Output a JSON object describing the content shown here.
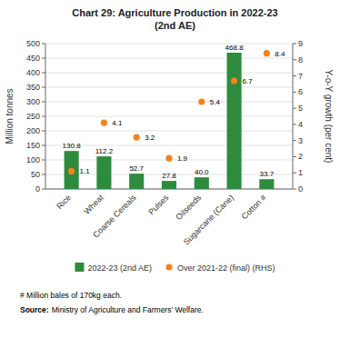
{
  "chart_data": {
    "type": "bar",
    "title": "Chart 29: Agriculture Production in 2022-23",
    "subtitle": "(2nd AE)",
    "categories": [
      "Rice",
      "Wheat",
      "Coarse Cereals",
      "Pulses",
      "Oilseeds",
      "Sugarcane (Cane)",
      "Cotton #"
    ],
    "series": [
      {
        "name": "2022-23 (2nd AE)",
        "type": "bar",
        "color": "#2e8b3e",
        "values": [
          130.8,
          112.2,
          52.7,
          27.8,
          40.0,
          468.8,
          33.7
        ],
        "value_labels": [
          "130.8",
          "112.2",
          "52.7",
          "27.8",
          "40.0",
          "468.8",
          "33.7"
        ]
      },
      {
        "name": "Over 2021-22 (final) (RHS)",
        "type": "scatter",
        "axis": "y2",
        "marker": "circle",
        "color": "#f5821f",
        "values": [
          1.1,
          4.1,
          3.2,
          1.9,
          5.4,
          6.7,
          8.4
        ]
      }
    ],
    "ylabel": "Million tonnes",
    "y2label": "Y-o-Y growth (per cent)",
    "ylim": [
      0,
      500
    ],
    "yticks": [
      0,
      50,
      100,
      150,
      200,
      250,
      300,
      350,
      400,
      450,
      500
    ],
    "y2lim": [
      0,
      9
    ],
    "y2ticks": [
      0,
      1,
      2,
      3,
      4,
      5,
      6,
      7,
      8,
      9
    ],
    "grid": true,
    "data_labels": true,
    "legend": "bottom",
    "annotations": [
      {
        "text": "# Million bales of 170kg each."
      },
      {
        "label": "Source:",
        "text": "Ministry of Agriculture and Farmers’ Welfare."
      }
    ]
  }
}
